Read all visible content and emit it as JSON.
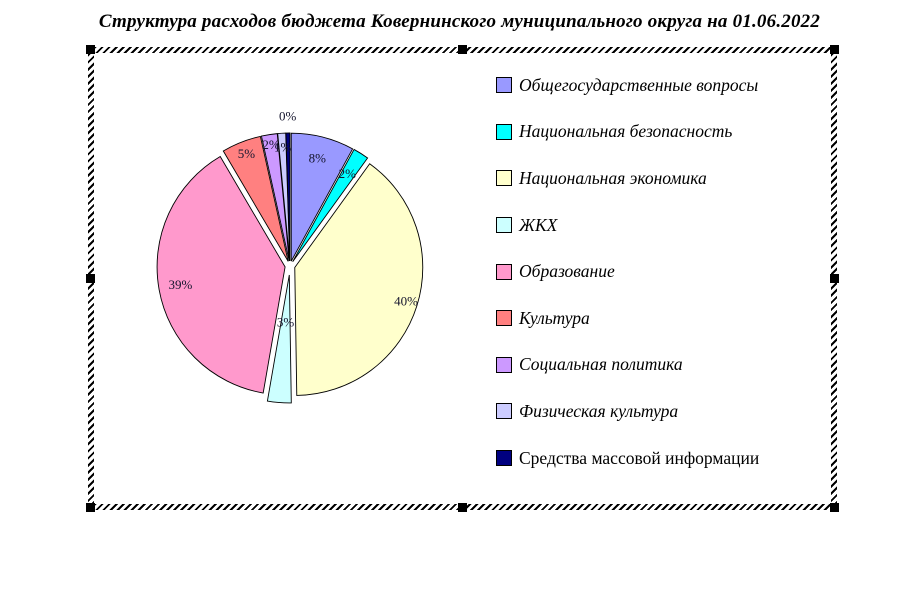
{
  "title": "Структура расходов бюджета Ковернинского муниципального округа на 01.06.2022",
  "chart_data": {
    "type": "pie",
    "title": "Структура расходов бюджета Ковернинского муниципального округа на 01.06.2022",
    "legend_position": "right",
    "start_angle_deg": 0,
    "direction": "clockwise",
    "exploded": true,
    "slices": [
      {
        "label": "Общегосударственные вопросы",
        "value": 8,
        "percent_label": "8%",
        "color": "#9999FF"
      },
      {
        "label": "Национальная безопасность",
        "value": 2,
        "percent_label": "2%",
        "color": "#00FFFF"
      },
      {
        "label": "Национальная экономика",
        "value": 40,
        "percent_label": "40%",
        "color": "#FFFFCC"
      },
      {
        "label": "ЖКХ",
        "value": 3,
        "percent_label": "3%",
        "color": "#CCFFFF"
      },
      {
        "label": "Образование",
        "value": 39,
        "percent_label": "39%",
        "color": "#FF99CC"
      },
      {
        "label": "Культура",
        "value": 5,
        "percent_label": "5%",
        "color": "#FF8080"
      },
      {
        "label": "Социальная политика",
        "value": 2,
        "percent_label": "2%",
        "color": "#CC99FF"
      },
      {
        "label": "Физическая культура",
        "value": 1,
        "percent_label": "1%",
        "color": "#CCCCFF"
      },
      {
        "label": "Средства массовой информации",
        "value": 0,
        "percent_label": "0%",
        "color": "#000080"
      }
    ]
  }
}
